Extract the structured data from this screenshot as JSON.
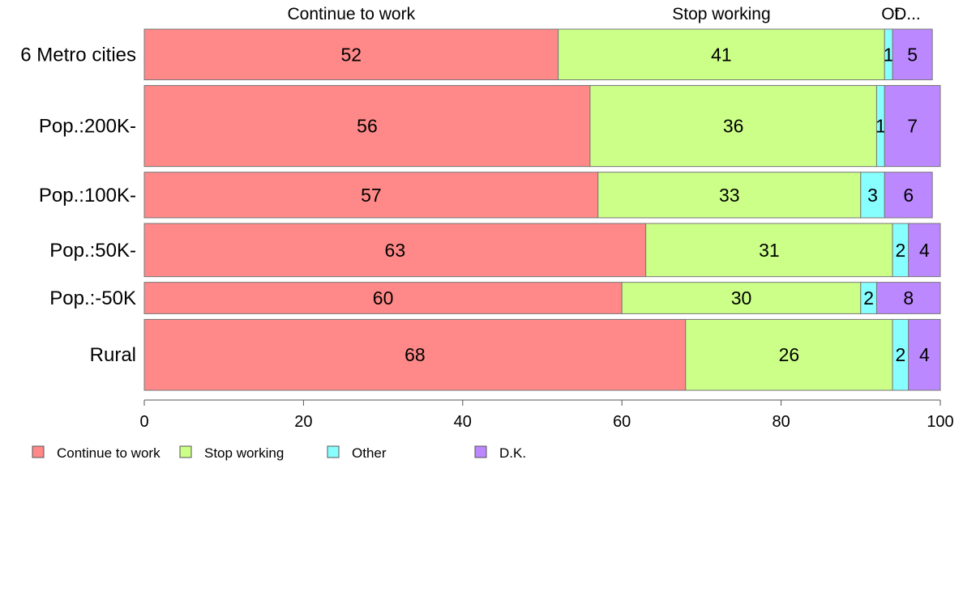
{
  "chart_data": {
    "type": "bar",
    "orientation": "horizontal",
    "stacked": true,
    "title": "",
    "xlabel": "",
    "ylabel": "",
    "xlim": [
      0,
      100
    ],
    "x_ticks": [
      "0",
      "20",
      "40",
      "60",
      "80",
      "100"
    ],
    "categories": [
      "6 Metro cities",
      "Pop.:200K-",
      "Pop.:100K-",
      "Pop.:50K-",
      "Pop.:-50K",
      "Rural"
    ],
    "row_weights": [
      1.0,
      1.6,
      0.9,
      1.05,
      0.62,
      1.4
    ],
    "column_headers": [
      "Continue to work",
      "Stop working",
      "Ot.",
      "D..."
    ],
    "series": [
      {
        "name": "Continue to work",
        "color": "#ff8888",
        "values": [
          52,
          56,
          57,
          63,
          60,
          68
        ]
      },
      {
        "name": "Stop working",
        "color": "#ccff88",
        "values": [
          41,
          36,
          33,
          31,
          30,
          26
        ]
      },
      {
        "name": "Other",
        "color": "#88ffff",
        "values": [
          1,
          1,
          3,
          2,
          2,
          2
        ]
      },
      {
        "name": "D.K.",
        "color": "#bb88ff",
        "values": [
          5,
          7,
          6,
          4,
          8,
          4
        ]
      }
    ],
    "legend": {
      "position": "bottom-left",
      "items": [
        "Continue to work",
        "Stop working",
        "Other",
        "D.K."
      ]
    },
    "grid": false
  }
}
